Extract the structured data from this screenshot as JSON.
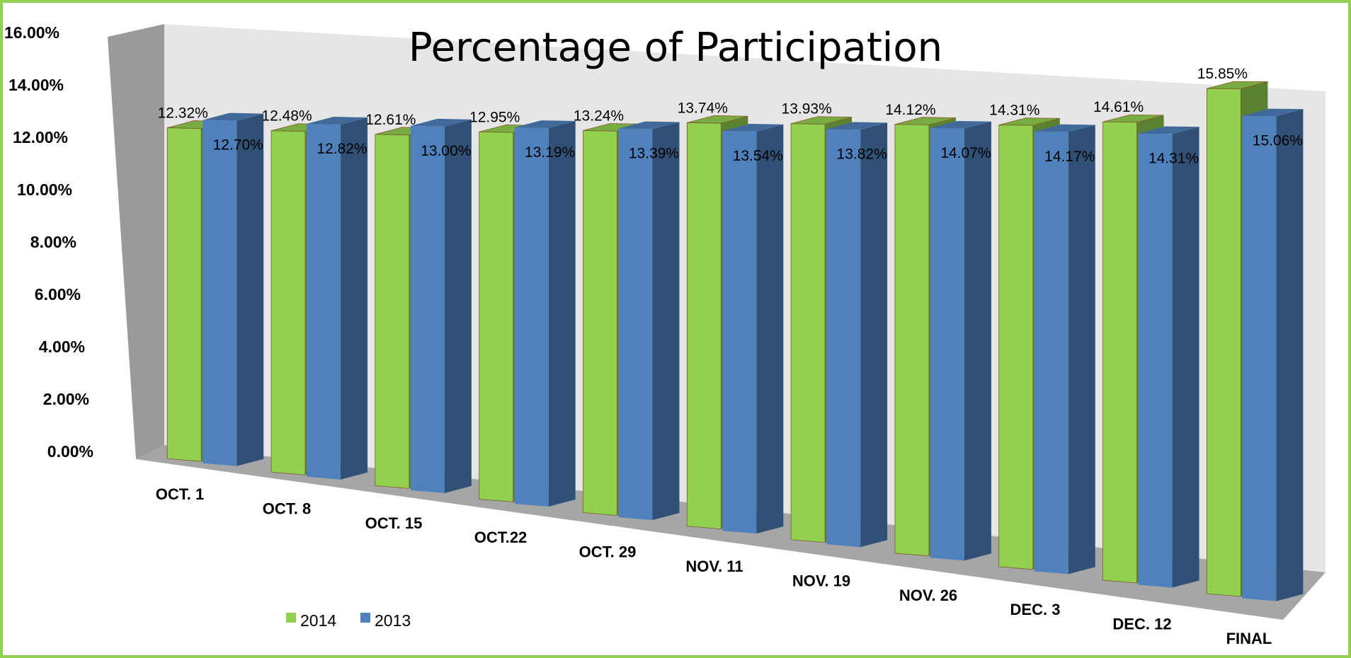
{
  "chart_data": {
    "type": "bar",
    "title": "Percentage of Participation",
    "categories": [
      "OCT. 1",
      "OCT. 8",
      "OCT. 15",
      "OCT.22",
      "OCT. 29",
      "NOV. 11",
      "NOV. 19",
      "NOV. 26",
      "DEC. 3",
      "DEC. 12",
      "FINAL"
    ],
    "series": [
      {
        "name": "2014",
        "color": "#92d050",
        "values": [
          12.32,
          12.48,
          12.61,
          12.95,
          13.24,
          13.74,
          13.93,
          14.12,
          14.31,
          14.61,
          15.85
        ],
        "labels": [
          "12.32%",
          "12.48%",
          "12.61%",
          "12.95%",
          "13.24%",
          "13.74%",
          "13.93%",
          "14.12%",
          "14.31%",
          "14.61%",
          "15.85%"
        ]
      },
      {
        "name": "2013",
        "color": "#4f81bd",
        "values": [
          12.7,
          12.82,
          13.0,
          13.19,
          13.39,
          13.54,
          13.82,
          14.07,
          14.17,
          14.31,
          15.06
        ],
        "labels": [
          "12.70%",
          "12.82%",
          "13.00%",
          "13.19%",
          "13.39%",
          "13.54%",
          "13.82%",
          "14.07%",
          "14.17%",
          "14.31%",
          "15.06%"
        ]
      }
    ],
    "y_ticks": [
      "0.00%",
      "2.00%",
      "4.00%",
      "6.00%",
      "8.00%",
      "10.00%",
      "12.00%",
      "14.00%",
      "16.00%"
    ],
    "ylim": [
      0,
      16
    ],
    "legend_position": "bottom-left",
    "style": "3d-clustered-column",
    "frame_color": "#92d050"
  }
}
